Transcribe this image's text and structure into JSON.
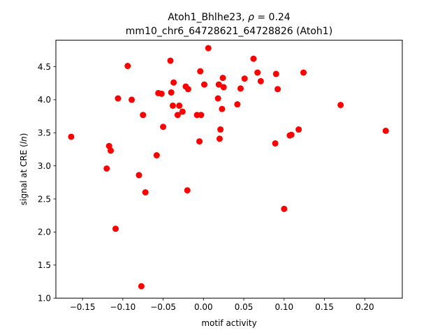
{
  "chart_data": {
    "type": "scatter",
    "title_line1_prefix": "Atoh1_Bhlhe23, ",
    "title_line1_rho": "ρ",
    "title_line1_suffix": " = 0.24",
    "title_line2": "mm10_chr6_64728621_64728826 (Atoh1)",
    "xlabel": "motif activity",
    "ylabel_prefix": "signal at CRE (",
    "ylabel_italic": "ln",
    "ylabel_suffix": ")",
    "xlim": [
      -0.183,
      0.2465
    ],
    "ylim": [
      1.0,
      4.9
    ],
    "xticks": [
      -0.15,
      -0.1,
      -0.05,
      0.0,
      0.05,
      0.1,
      0.15,
      0.2
    ],
    "xtick_labels": [
      "−0.15",
      "−0.10",
      "−0.05",
      "0.00",
      "0.05",
      "0.10",
      "0.15",
      "0.20"
    ],
    "yticks": [
      1.0,
      1.5,
      2.0,
      2.5,
      3.0,
      3.5,
      4.0,
      4.5
    ],
    "ytick_labels": [
      "1.0",
      "1.5",
      "2.0",
      "2.5",
      "3.0",
      "3.5",
      "4.0",
      "4.5"
    ],
    "marker_color": "#ff0000",
    "grid": false,
    "legend": "none",
    "points": [
      {
        "x": -0.164,
        "y": 3.44
      },
      {
        "x": -0.12,
        "y": 2.96
      },
      {
        "x": -0.117,
        "y": 3.3
      },
      {
        "x": -0.115,
        "y": 3.23
      },
      {
        "x": -0.109,
        "y": 2.05
      },
      {
        "x": -0.106,
        "y": 4.02
      },
      {
        "x": -0.094,
        "y": 4.51
      },
      {
        "x": -0.089,
        "y": 4.0
      },
      {
        "x": -0.08,
        "y": 2.86
      },
      {
        "x": -0.077,
        "y": 1.18
      },
      {
        "x": -0.075,
        "y": 3.77
      },
      {
        "x": -0.072,
        "y": 2.6
      },
      {
        "x": -0.058,
        "y": 3.16
      },
      {
        "x": -0.056,
        "y": 4.1
      },
      {
        "x": -0.052,
        "y": 4.09
      },
      {
        "x": -0.05,
        "y": 3.59
      },
      {
        "x": -0.041,
        "y": 4.59
      },
      {
        "x": -0.04,
        "y": 4.11
      },
      {
        "x": -0.038,
        "y": 3.91
      },
      {
        "x": -0.037,
        "y": 4.26
      },
      {
        "x": -0.032,
        "y": 3.77
      },
      {
        "x": -0.03,
        "y": 3.91
      },
      {
        "x": -0.026,
        "y": 3.82
      },
      {
        "x": -0.022,
        "y": 4.2
      },
      {
        "x": -0.02,
        "y": 2.63
      },
      {
        "x": -0.019,
        "y": 4.16
      },
      {
        "x": -0.008,
        "y": 3.77
      },
      {
        "x": -0.005,
        "y": 3.37
      },
      {
        "x": -0.004,
        "y": 4.43
      },
      {
        "x": -0.003,
        "y": 3.77
      },
      {
        "x": 0.001,
        "y": 4.23
      },
      {
        "x": 0.006,
        "y": 4.78
      },
      {
        "x": 0.018,
        "y": 4.02
      },
      {
        "x": 0.019,
        "y": 4.23
      },
      {
        "x": 0.02,
        "y": 3.41
      },
      {
        "x": 0.021,
        "y": 3.55
      },
      {
        "x": 0.023,
        "y": 3.86
      },
      {
        "x": 0.024,
        "y": 4.33
      },
      {
        "x": 0.025,
        "y": 4.19
      },
      {
        "x": 0.042,
        "y": 3.93
      },
      {
        "x": 0.046,
        "y": 4.17
      },
      {
        "x": 0.051,
        "y": 4.32
      },
      {
        "x": 0.062,
        "y": 4.62
      },
      {
        "x": 0.067,
        "y": 4.41
      },
      {
        "x": 0.071,
        "y": 4.28
      },
      {
        "x": 0.089,
        "y": 3.34
      },
      {
        "x": 0.09,
        "y": 4.39
      },
      {
        "x": 0.092,
        "y": 4.16
      },
      {
        "x": 0.1,
        "y": 2.35
      },
      {
        "x": 0.107,
        "y": 3.46
      },
      {
        "x": 0.109,
        "y": 3.47
      },
      {
        "x": 0.118,
        "y": 3.55
      },
      {
        "x": 0.124,
        "y": 4.41
      },
      {
        "x": 0.17,
        "y": 3.92
      },
      {
        "x": 0.226,
        "y": 3.53
      }
    ]
  }
}
